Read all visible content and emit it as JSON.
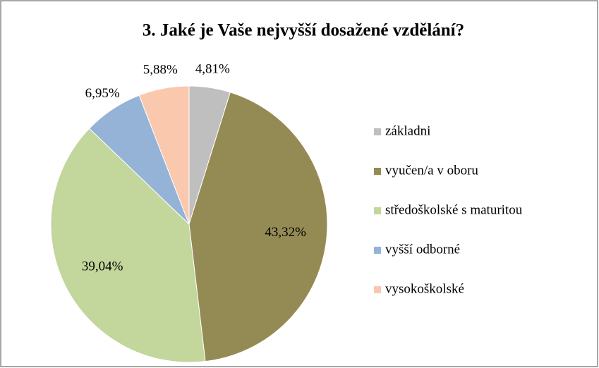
{
  "chart_data": {
    "type": "pie",
    "title": "3. Jaké je Vaše nejvyšší dosažené vzdělání?",
    "categories": [
      "základni",
      "vyučen/a v oboru",
      "středoškolské s maturitou",
      "vyšší odborné",
      "vysokoškolské"
    ],
    "values": [
      4.81,
      43.32,
      39.04,
      6.95,
      5.88
    ],
    "value_labels": [
      "4,81%",
      "43,32%",
      "39,04%",
      "6,95%",
      "5,88%"
    ],
    "colors": [
      "#bfbfbf",
      "#948a54",
      "#c3d69b",
      "#95b3d7",
      "#fac8ac"
    ],
    "legend": "right"
  }
}
